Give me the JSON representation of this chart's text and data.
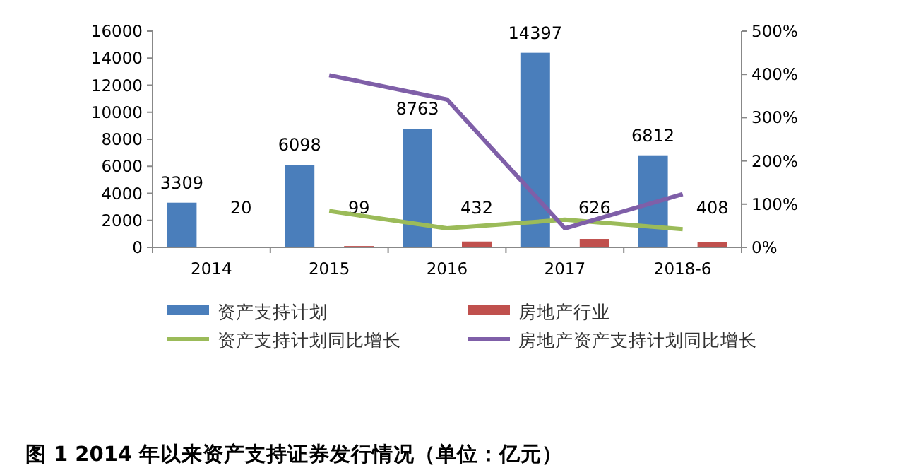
{
  "chart_data": {
    "type": "bar",
    "title": "图 1   2014 年以来资产支持证券发行情况（单位：亿元）",
    "categories": [
      "2014",
      "2015",
      "2016",
      "2017",
      "2018-6"
    ],
    "series": [
      {
        "name": "资产支持计划",
        "color": "#4a7ebb",
        "values": [
          3309,
          6098,
          8763,
          14397,
          6812
        ],
        "value_labels": [
          "3309",
          "6098",
          "8763",
          "14397",
          "6812"
        ]
      },
      {
        "name": "房地产行业",
        "color": "#c0504d",
        "values": [
          20,
          99,
          432,
          626,
          408
        ],
        "value_labels": [
          "20",
          "99",
          "432",
          "626",
          "408"
        ]
      },
      {
        "name": "资产支持计划同比增长",
        "type": "line",
        "axis": "y2",
        "color": "#9bbb59",
        "values": [
          null,
          84,
          44,
          64,
          42
        ]
      },
      {
        "name": "房地产资产支持计划同比增长",
        "type": "line",
        "axis": "y2",
        "color": "#7f5fa8",
        "values": [
          null,
          398,
          342,
          44,
          123
        ]
      }
    ],
    "ylim": [
      0,
      16000
    ],
    "yticks": [
      0,
      2000,
      4000,
      6000,
      8000,
      10000,
      12000,
      14000,
      16000
    ],
    "y2lim": [
      0,
      500
    ],
    "y2ticks": [
      {
        "value": 0,
        "label": "0%"
      },
      {
        "value": 100,
        "label": "100%"
      },
      {
        "value": 200,
        "label": "200%"
      },
      {
        "value": 300,
        "label": "300%"
      },
      {
        "value": 400,
        "label": "400%"
      },
      {
        "value": 500,
        "label": "500%"
      }
    ],
    "legend": "bottom",
    "grid": false
  }
}
